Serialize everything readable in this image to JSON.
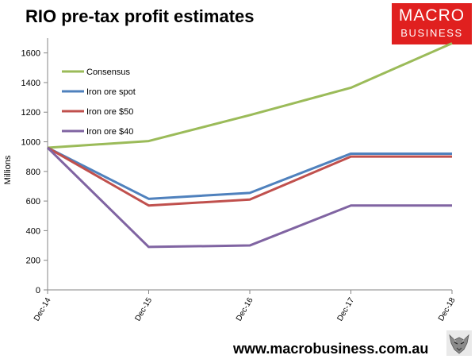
{
  "title": "RIO pre-tax profit estimates",
  "logo": {
    "line1": "MACRO",
    "line2": "BUSINESS"
  },
  "footer": {
    "url": "www.macrobusiness.com.au"
  },
  "colors": {
    "consensus": "#9bbb59",
    "iron_ore_spot": "#4f81bd",
    "iron_ore_50": "#c0504d",
    "iron_ore_40": "#8064a2",
    "logo_bg": "#e0201f"
  },
  "icons": {
    "corner": "wolf-icon"
  },
  "chart_data": {
    "type": "line",
    "title": "RIO pre-tax profit estimates",
    "ylabel": "Millions",
    "xlabel": "",
    "categories": [
      "Dec-14",
      "Dec-15",
      "Dec-16",
      "Dec-17",
      "Dec-18"
    ],
    "ylim": [
      0,
      1700
    ],
    "yticks": [
      0,
      200,
      400,
      600,
      800,
      1000,
      1200,
      1400,
      1600
    ],
    "grid": false,
    "legend": "top-left",
    "series": [
      {
        "name": "Consensus",
        "color": "#9bbb59",
        "values": [
          960,
          1005,
          1180,
          1365,
          1665
        ]
      },
      {
        "name": "Iron ore spot",
        "color": "#4f81bd",
        "values": [
          960,
          615,
          655,
          920,
          920
        ]
      },
      {
        "name": "Iron ore $50",
        "color": "#c0504d",
        "values": [
          960,
          570,
          610,
          900,
          900
        ]
      },
      {
        "name": "Iron ore $40",
        "color": "#8064a2",
        "values": [
          960,
          290,
          300,
          570,
          570
        ]
      }
    ]
  }
}
